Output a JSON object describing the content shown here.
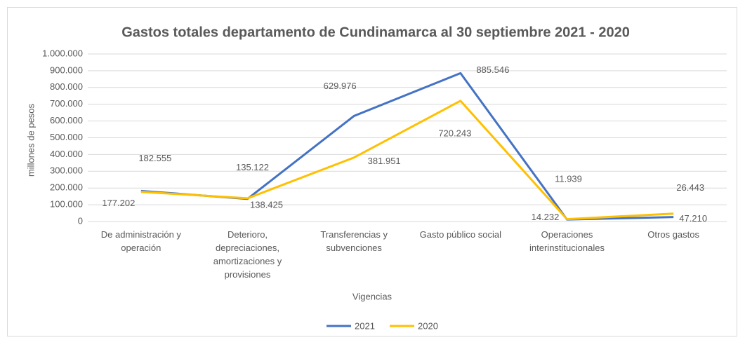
{
  "chart_data": {
    "type": "line",
    "title": "Gastos totales departamento de Cundinamarca al 30 septiembre 2021 - 2020",
    "x_label": "Vigencias",
    "y_label": "millones de pesos",
    "categories": [
      "De administración y operación",
      "Deterioro, depreciaciones, amortizaciones y provisiones",
      "Transferencias y subvenciones",
      "Gasto público social",
      "Operaciones interinstitucionales",
      "Otros gastos"
    ],
    "series": [
      {
        "name": "2021",
        "color": "#4472c4",
        "values": [
          182555,
          135122,
          629976,
          885546,
          11939,
          26443
        ],
        "value_labels": [
          "182.555",
          "135.122",
          "629.976",
          "885.546",
          "11.939",
          "26.443"
        ]
      },
      {
        "name": "2020",
        "color": "#ffc000",
        "values": [
          177202,
          138425,
          381951,
          720243,
          14232,
          47210
        ],
        "value_labels": [
          "177.202",
          "138.425",
          "381.951",
          "720.243",
          "14.232",
          "47.210"
        ]
      }
    ],
    "ylim": [
      0,
      1000000
    ],
    "yticks": [
      0,
      {
        "value": 100000,
        "label": "100.000"
      },
      {
        "value": 200000,
        "label": "200.000"
      },
      {
        "value": 300000,
        "label": "300.000"
      },
      {
        "value": 400000,
        "label": "400.000"
      },
      {
        "value": 500000,
        "label": "500.000"
      },
      {
        "value": 600000,
        "label": "600.000"
      },
      {
        "value": 700000,
        "label": "700.000"
      },
      {
        "value": 800000,
        "label": "800.000"
      },
      {
        "value": 900000,
        "label": "900.000"
      },
      {
        "value": 1000000,
        "label": "1.000.000"
      }
    ],
    "grid": true,
    "legend": "bottom"
  }
}
